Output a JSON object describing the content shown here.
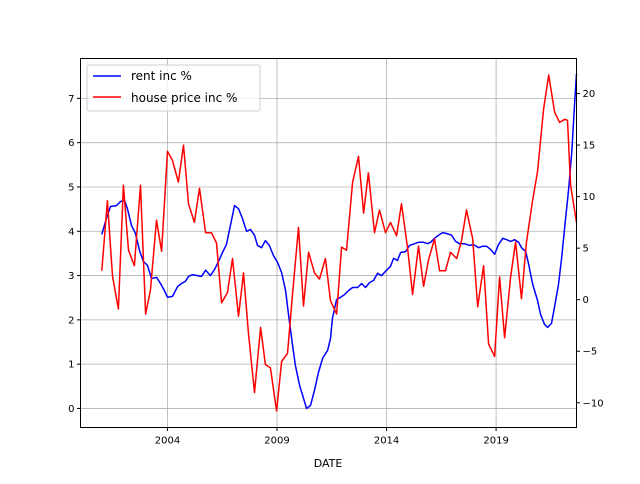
{
  "chart_data": {
    "type": "line",
    "title": "",
    "xlabel": "DATE",
    "ylabel_left": "",
    "ylabel_right": "",
    "xlim": [
      2000.03,
      2022.67
    ],
    "ylim_left": [
      -0.43,
      7.9
    ],
    "ylim_right": [
      -12.4,
      23.4
    ],
    "x_ticks": [
      {
        "v": 2004,
        "label": "2004"
      },
      {
        "v": 2009,
        "label": "2009"
      },
      {
        "v": 2014,
        "label": "2014"
      },
      {
        "v": 2019,
        "label": "2019"
      }
    ],
    "y_ticks_left": [
      {
        "v": 0,
        "label": "0"
      },
      {
        "v": 1,
        "label": "1"
      },
      {
        "v": 2,
        "label": "2"
      },
      {
        "v": 3,
        "label": "3"
      },
      {
        "v": 4,
        "label": "4"
      },
      {
        "v": 5,
        "label": "5"
      },
      {
        "v": 6,
        "label": "6"
      },
      {
        "v": 7,
        "label": "7"
      }
    ],
    "y_ticks_right": [
      {
        "v": -10,
        "label": "−10"
      },
      {
        "v": -5,
        "label": "−5"
      },
      {
        "v": 0,
        "label": "0"
      },
      {
        "v": 5,
        "label": "5"
      },
      {
        "v": 10,
        "label": "10"
      },
      {
        "v": 15,
        "label": "15"
      },
      {
        "v": 20,
        "label": "20"
      }
    ],
    "grid": true,
    "legend_position": "top-left",
    "series": [
      {
        "name": "rent inc %",
        "axis": "left",
        "color": "#0000ff",
        "points": [
          [
            2001.0,
            3.93
          ],
          [
            2001.21,
            4.29
          ],
          [
            2001.4,
            4.56
          ],
          [
            2001.67,
            4.58
          ],
          [
            2001.85,
            4.67
          ],
          [
            2002.04,
            4.7
          ],
          [
            2002.17,
            4.51
          ],
          [
            2002.36,
            4.13
          ],
          [
            2002.54,
            3.95
          ],
          [
            2002.72,
            3.57
          ],
          [
            2002.9,
            3.32
          ],
          [
            2003.09,
            3.23
          ],
          [
            2003.27,
            2.93
          ],
          [
            2003.5,
            2.96
          ],
          [
            2003.68,
            2.82
          ],
          [
            2003.86,
            2.66
          ],
          [
            2004.0,
            2.51
          ],
          [
            2004.23,
            2.53
          ],
          [
            2004.46,
            2.75
          ],
          [
            2004.64,
            2.82
          ],
          [
            2004.82,
            2.87
          ],
          [
            2004.96,
            2.98
          ],
          [
            2005.14,
            3.02
          ],
          [
            2005.37,
            3.0
          ],
          [
            2005.55,
            2.98
          ],
          [
            2005.74,
            3.12
          ],
          [
            2005.96,
            3.0
          ],
          [
            2006.15,
            3.14
          ],
          [
            2006.33,
            3.32
          ],
          [
            2006.51,
            3.52
          ],
          [
            2006.69,
            3.7
          ],
          [
            2006.88,
            4.15
          ],
          [
            2007.06,
            4.58
          ],
          [
            2007.24,
            4.51
          ],
          [
            2007.42,
            4.29
          ],
          [
            2007.61,
            4.0
          ],
          [
            2007.79,
            4.04
          ],
          [
            2007.97,
            3.91
          ],
          [
            2008.11,
            3.68
          ],
          [
            2008.29,
            3.63
          ],
          [
            2008.47,
            3.79
          ],
          [
            2008.65,
            3.68
          ],
          [
            2008.84,
            3.45
          ],
          [
            2009.02,
            3.3
          ],
          [
            2009.21,
            3.07
          ],
          [
            2009.39,
            2.66
          ],
          [
            2009.53,
            2.1
          ],
          [
            2009.71,
            1.42
          ],
          [
            2009.84,
            0.97
          ],
          [
            2010.03,
            0.52
          ],
          [
            2010.21,
            0.23
          ],
          [
            2010.35,
            0.0
          ],
          [
            2010.53,
            0.07
          ],
          [
            2010.71,
            0.41
          ],
          [
            2010.89,
            0.81
          ],
          [
            2011.08,
            1.13
          ],
          [
            2011.31,
            1.31
          ],
          [
            2011.44,
            1.58
          ],
          [
            2011.53,
            2.03
          ],
          [
            2011.72,
            2.46
          ],
          [
            2011.9,
            2.51
          ],
          [
            2012.08,
            2.57
          ],
          [
            2012.26,
            2.66
          ],
          [
            2012.45,
            2.73
          ],
          [
            2012.68,
            2.73
          ],
          [
            2012.86,
            2.82
          ],
          [
            2013.04,
            2.73
          ],
          [
            2013.22,
            2.84
          ],
          [
            2013.41,
            2.89
          ],
          [
            2013.59,
            3.05
          ],
          [
            2013.77,
            3.0
          ],
          [
            2014.0,
            3.12
          ],
          [
            2014.18,
            3.21
          ],
          [
            2014.32,
            3.39
          ],
          [
            2014.5,
            3.34
          ],
          [
            2014.64,
            3.52
          ],
          [
            2014.87,
            3.54
          ],
          [
            2015.05,
            3.68
          ],
          [
            2015.28,
            3.72
          ],
          [
            2015.46,
            3.75
          ],
          [
            2015.69,
            3.75
          ],
          [
            2015.87,
            3.72
          ],
          [
            2016.01,
            3.75
          ],
          [
            2016.19,
            3.84
          ],
          [
            2016.37,
            3.91
          ],
          [
            2016.56,
            3.97
          ],
          [
            2016.74,
            3.95
          ],
          [
            2016.97,
            3.91
          ],
          [
            2017.15,
            3.77
          ],
          [
            2017.33,
            3.72
          ],
          [
            2017.56,
            3.72
          ],
          [
            2017.79,
            3.68
          ],
          [
            2017.97,
            3.7
          ],
          [
            2018.2,
            3.63
          ],
          [
            2018.38,
            3.66
          ],
          [
            2018.57,
            3.66
          ],
          [
            2018.75,
            3.59
          ],
          [
            2018.93,
            3.48
          ],
          [
            2019.11,
            3.7
          ],
          [
            2019.3,
            3.84
          ],
          [
            2019.48,
            3.81
          ],
          [
            2019.66,
            3.77
          ],
          [
            2019.84,
            3.81
          ],
          [
            2020.03,
            3.75
          ],
          [
            2020.16,
            3.63
          ],
          [
            2020.35,
            3.54
          ],
          [
            2020.48,
            3.27
          ],
          [
            2020.67,
            2.8
          ],
          [
            2020.89,
            2.44
          ],
          [
            2021.03,
            2.12
          ],
          [
            2021.21,
            1.9
          ],
          [
            2021.35,
            1.83
          ],
          [
            2021.53,
            1.92
          ],
          [
            2021.67,
            2.3
          ],
          [
            2021.85,
            2.8
          ],
          [
            2021.99,
            3.39
          ],
          [
            2022.13,
            4.09
          ],
          [
            2022.31,
            4.94
          ],
          [
            2022.45,
            5.76
          ],
          [
            2022.58,
            6.84
          ],
          [
            2022.67,
            7.56
          ]
        ]
      },
      {
        "name": "house price inc %",
        "axis": "right",
        "color": "#ff0000",
        "points": [
          [
            2001.0,
            2.8
          ],
          [
            2001.26,
            9.6
          ],
          [
            2001.49,
            2.3
          ],
          [
            2001.76,
            -0.9
          ],
          [
            2001.99,
            11.1
          ],
          [
            2002.22,
            4.8
          ],
          [
            2002.49,
            3.3
          ],
          [
            2002.77,
            11.1
          ],
          [
            2003.0,
            -1.4
          ],
          [
            2003.22,
            0.9
          ],
          [
            2003.5,
            7.7
          ],
          [
            2003.73,
            4.7
          ],
          [
            2004.0,
            14.4
          ],
          [
            2004.23,
            13.5
          ],
          [
            2004.5,
            11.4
          ],
          [
            2004.73,
            15.0
          ],
          [
            2004.96,
            9.3
          ],
          [
            2005.23,
            7.5
          ],
          [
            2005.46,
            10.8
          ],
          [
            2005.74,
            6.5
          ],
          [
            2006.01,
            6.5
          ],
          [
            2006.24,
            5.5
          ],
          [
            2006.47,
            -0.3
          ],
          [
            2006.74,
            0.7
          ],
          [
            2006.97,
            4.0
          ],
          [
            2007.24,
            -1.6
          ],
          [
            2007.47,
            2.6
          ],
          [
            2007.7,
            -3.3
          ],
          [
            2007.97,
            -9.0
          ],
          [
            2008.25,
            -2.7
          ],
          [
            2008.47,
            -6.3
          ],
          [
            2008.7,
            -6.6
          ],
          [
            2008.98,
            -10.8
          ],
          [
            2009.21,
            -6.0
          ],
          [
            2009.48,
            -5.2
          ],
          [
            2009.71,
            0.6
          ],
          [
            2009.98,
            7.0
          ],
          [
            2010.21,
            -0.6
          ],
          [
            2010.44,
            4.6
          ],
          [
            2010.71,
            2.6
          ],
          [
            2010.94,
            2.0
          ],
          [
            2011.21,
            4.0
          ],
          [
            2011.44,
            -0.1
          ],
          [
            2011.72,
            -1.4
          ],
          [
            2011.95,
            5.1
          ],
          [
            2012.17,
            4.8
          ],
          [
            2012.45,
            11.4
          ],
          [
            2012.72,
            13.9
          ],
          [
            2012.95,
            8.4
          ],
          [
            2013.17,
            12.3
          ],
          [
            2013.45,
            6.5
          ],
          [
            2013.68,
            8.7
          ],
          [
            2013.95,
            6.5
          ],
          [
            2014.18,
            7.5
          ],
          [
            2014.46,
            6.2
          ],
          [
            2014.68,
            9.3
          ],
          [
            2014.96,
            5.0
          ],
          [
            2015.19,
            0.5
          ],
          [
            2015.46,
            5.2
          ],
          [
            2015.69,
            1.3
          ],
          [
            2015.92,
            3.9
          ],
          [
            2016.19,
            5.9
          ],
          [
            2016.42,
            2.8
          ],
          [
            2016.69,
            2.8
          ],
          [
            2016.92,
            4.6
          ],
          [
            2017.2,
            4.0
          ],
          [
            2017.42,
            5.7
          ],
          [
            2017.65,
            8.7
          ],
          [
            2017.93,
            5.9
          ],
          [
            2018.16,
            -0.7
          ],
          [
            2018.43,
            3.3
          ],
          [
            2018.66,
            -4.3
          ],
          [
            2018.93,
            -5.5
          ],
          [
            2019.16,
            2.2
          ],
          [
            2019.39,
            -3.7
          ],
          [
            2019.66,
            2.2
          ],
          [
            2019.89,
            5.6
          ],
          [
            2020.16,
            0.1
          ],
          [
            2020.39,
            5.6
          ],
          [
            2020.67,
            9.7
          ],
          [
            2020.89,
            12.4
          ],
          [
            2021.17,
            18.5
          ],
          [
            2021.4,
            21.8
          ],
          [
            2021.67,
            18.2
          ],
          [
            2021.9,
            17.2
          ],
          [
            2022.13,
            17.5
          ],
          [
            2022.26,
            17.4
          ],
          [
            2022.4,
            11.1
          ],
          [
            2022.67,
            7.5
          ]
        ]
      }
    ]
  }
}
